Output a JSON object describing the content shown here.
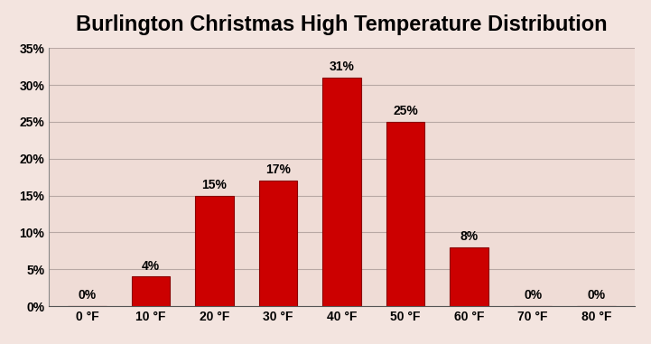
{
  "chart_data": {
    "type": "bar",
    "title": "Burlington Christmas High Temperature Distribution",
    "categories": [
      "0 °F",
      "10 °F",
      "20 °F",
      "30 °F",
      "40 °F",
      "50 °F",
      "60 °F",
      "70 °F",
      "80 °F"
    ],
    "values": [
      0,
      4,
      15,
      17,
      31,
      25,
      8,
      0,
      0
    ],
    "value_labels": [
      "0%",
      "4%",
      "15%",
      "17%",
      "31%",
      "25%",
      "8%",
      "0%",
      "0%"
    ],
    "data_labels": true,
    "color": "#cc0000",
    "ylim": [
      0,
      35
    ],
    "yticks": [
      {
        "value": 0,
        "label": "0%"
      },
      {
        "value": 5,
        "label": "5%"
      },
      {
        "value": 10,
        "label": "10%"
      },
      {
        "value": 15,
        "label": "15%"
      },
      {
        "value": 20,
        "label": "20%"
      },
      {
        "value": 25,
        "label": "25%"
      },
      {
        "value": 30,
        "label": "30%"
      },
      {
        "value": 35,
        "label": "35%"
      }
    ],
    "grid": true
  }
}
